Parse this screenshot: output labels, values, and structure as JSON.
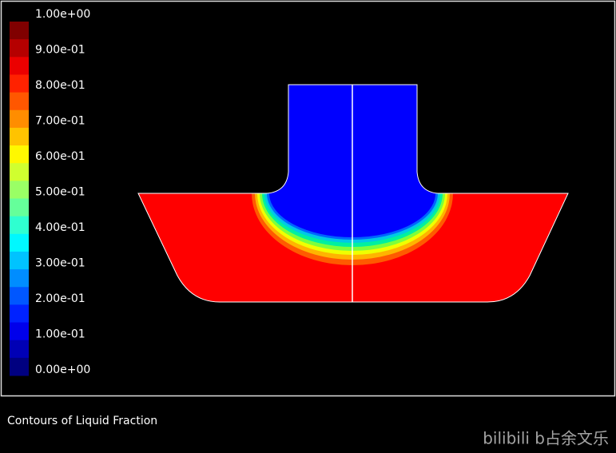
{
  "colorbar": {
    "labels": [
      "1.00e+00",
      "9.00e-01",
      "8.00e-01",
      "7.00e-01",
      "6.00e-01",
      "5.00e-01",
      "4.00e-01",
      "3.00e-01",
      "2.00e-01",
      "1.00e-01",
      "0.00e+00"
    ]
  },
  "caption": "Contours of Liquid Fraction",
  "watermark": "bilibili b占余文乐"
}
